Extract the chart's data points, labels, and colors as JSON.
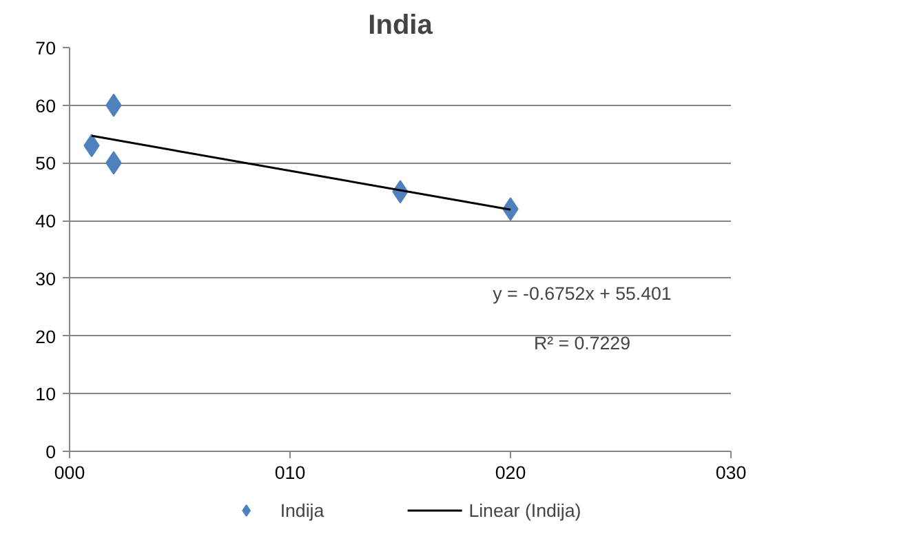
{
  "chart_data": {
    "type": "scatter",
    "title": "India",
    "series": [
      {
        "name": "Indija",
        "type": "scatter",
        "color": "#4f81bd",
        "marker": "diamond",
        "x": [
          1,
          2,
          2,
          15,
          20
        ],
        "values": [
          53,
          60,
          50,
          45,
          42
        ]
      },
      {
        "name": "Linear (Indija)",
        "type": "line",
        "color": "#000000",
        "marker": "none",
        "line_style": "solid",
        "x": [
          1,
          20
        ],
        "values": [
          54.7,
          41.9
        ]
      }
    ],
    "xlim": [
      0,
      30
    ],
    "xticks": [
      {
        "value": 0,
        "label": "000"
      },
      {
        "value": 10,
        "label": "010"
      },
      {
        "value": 20,
        "label": "020"
      },
      {
        "value": 30,
        "label": "030"
      }
    ],
    "ylim": [
      0,
      70
    ],
    "yticks": [
      0,
      10,
      20,
      30,
      40,
      50,
      60,
      70
    ],
    "grid": "y",
    "legend": "bottom",
    "annotations": [
      "y = -0.6752x + 55.401",
      "R² = 0.7229"
    ]
  }
}
